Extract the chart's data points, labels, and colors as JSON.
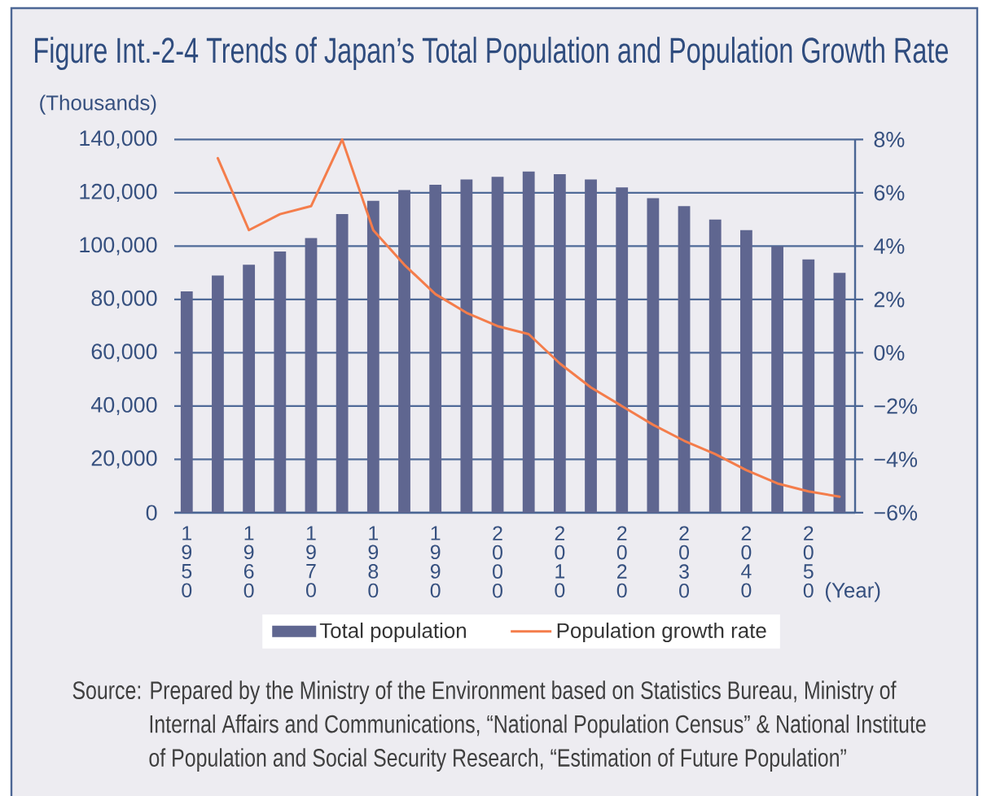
{
  "chart_data": {
    "type": "bar",
    "title": "Figure Int.-2-4 Trends of Japan’s Total Population and Population Growth Rate",
    "xlabel": "(Year)",
    "ylabel": "(Thousands)",
    "categories": [
      "1950",
      null,
      "1960",
      null,
      "1970",
      null,
      "1980",
      null,
      "1990",
      null,
      "2000",
      null,
      "2010",
      null,
      "2020",
      null,
      "2030",
      null,
      "2040",
      null,
      "2050",
      null
    ],
    "series": [
      {
        "name": "Total population",
        "color": "#5f6690",
        "values": [
          83000,
          89000,
          93000,
          98000,
          103000,
          112000,
          117000,
          121000,
          123000,
          125000,
          126000,
          128000,
          127000,
          125000,
          122000,
          118000,
          115000,
          110000,
          106000,
          100000,
          95000,
          90000
        ]
      },
      {
        "name": "Population growth rate",
        "type": "line",
        "axis": "y2",
        "color": "#f47d4b",
        "values": [
          null,
          7.3,
          4.6,
          5.2,
          5.5,
          8.0,
          4.6,
          3.3,
          2.2,
          1.5,
          1.0,
          0.7,
          -0.4,
          -1.3,
          -2.0,
          -2.7,
          -3.3,
          -3.8,
          -4.4,
          -4.9,
          -5.2,
          -5.4
        ]
      }
    ],
    "ylim": [
      0,
      140000
    ],
    "yticks": [
      0,
      {
        "value": 20000,
        "label": "20,000"
      },
      {
        "value": 40000,
        "label": "40,000"
      },
      {
        "value": 60000,
        "label": "60,000"
      },
      {
        "value": 80000,
        "label": "80,000"
      },
      {
        "value": 100000,
        "label": "100,000"
      },
      {
        "value": 120000,
        "label": "120,000"
      },
      {
        "value": 140000,
        "label": "140,000"
      }
    ],
    "y2lim": [
      -6,
      8
    ],
    "y2ticks": [
      {
        "value": -6,
        "label": "−6%"
      },
      {
        "value": -4,
        "label": "−4%"
      },
      {
        "value": -2,
        "label": "−2%"
      },
      {
        "value": 0,
        "label": "0%"
      },
      {
        "value": 2,
        "label": "2%"
      },
      {
        "value": 4,
        "label": "4%"
      },
      {
        "value": 6,
        "label": "6%"
      },
      {
        "value": 8,
        "label": "8%"
      }
    ],
    "grid": "y",
    "legend": "bottom",
    "annotations": [
      "Source: Prepared by the Ministry of the Environment based on Statistics Bureau, Ministry of Internal Affairs and Communications, “National Population Census” & National Institute of Population and Social Security Research, “Estimation of Future Population”"
    ]
  }
}
